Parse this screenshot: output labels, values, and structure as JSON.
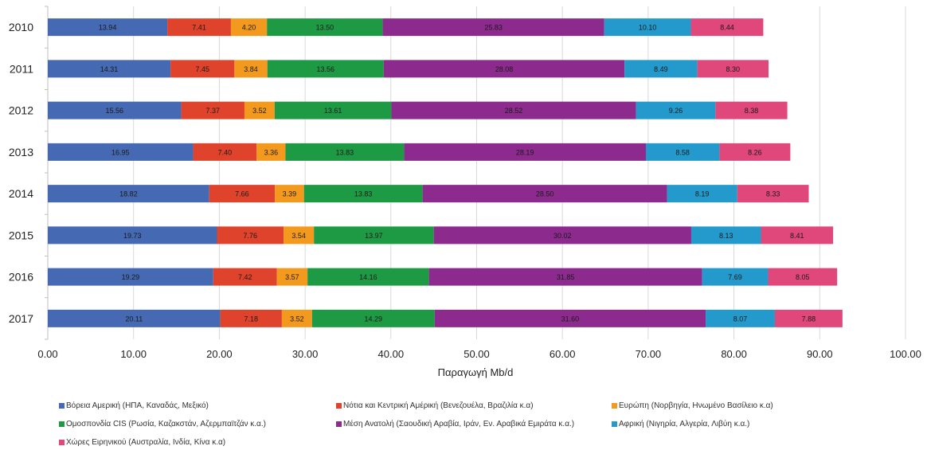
{
  "chart_data": {
    "type": "bar",
    "orientation": "horizontal",
    "stacked": true,
    "xlabel": "Παραγωγή Mb/d",
    "xlim": [
      0,
      100
    ],
    "xticks": [
      "0.00",
      "10.00",
      "20.00",
      "30.00",
      "40.00",
      "50.00",
      "60.00",
      "70.00",
      "80.00",
      "90.00",
      "100.00"
    ],
    "grid": "vertical",
    "legend_position": "bottom",
    "categories": [
      "2010",
      "2011",
      "2012",
      "2013",
      "2014",
      "2015",
      "2016",
      "2017"
    ],
    "series": [
      {
        "name": "Βόρεια Αμερική (ΗΠΑ, Καναδάς, Μεξικό)",
        "color": "#4569b2",
        "values": [
          13.94,
          14.31,
          15.56,
          16.95,
          18.82,
          19.73,
          19.29,
          20.11
        ]
      },
      {
        "name": "Νότια και Κεντρική Αμέρική (Βενεζουέλα, Βραζιλία κ.α)",
        "color": "#e0432b",
        "values": [
          7.41,
          7.45,
          7.37,
          7.4,
          7.66,
          7.76,
          7.42,
          7.18
        ]
      },
      {
        "name": "Ευρώπη (Νορβηγία, Ηνωμένο Βασίλειο κ.α)",
        "color": "#f39a1e",
        "values": [
          4.2,
          3.84,
          3.52,
          3.36,
          3.39,
          3.54,
          3.57,
          3.52
        ]
      },
      {
        "name": "Ομοσπονδία CIS (Ρωσία, Καζακστάν, Αζερμπαϊτζάν κ.α.)",
        "color": "#1e9a44",
        "values": [
          13.5,
          13.56,
          13.61,
          13.83,
          13.83,
          13.97,
          14.16,
          14.29
        ]
      },
      {
        "name": "Μέση Ανατολή (Σαουδική Αραβία, Ιράν, Εν. Αραβικά Εμιράτα κ.α.)",
        "color": "#8c2a8e",
        "values": [
          25.83,
          28.08,
          28.52,
          28.19,
          28.5,
          30.02,
          31.85,
          31.6
        ]
      },
      {
        "name": "Αφρική (Νιγηρία, Αλγερία, Λιβύη κ.α.)",
        "color": "#2399cc",
        "values": [
          10.1,
          8.49,
          9.26,
          8.58,
          8.19,
          8.13,
          7.69,
          8.07
        ]
      },
      {
        "name": "Χώρες Ειρηνικού (Αυστραλία, Ινδία, Κίνα κ.α)",
        "color": "#e0477a",
        "values": [
          8.44,
          8.3,
          8.38,
          8.26,
          8.33,
          8.41,
          8.05,
          7.88
        ]
      }
    ]
  }
}
